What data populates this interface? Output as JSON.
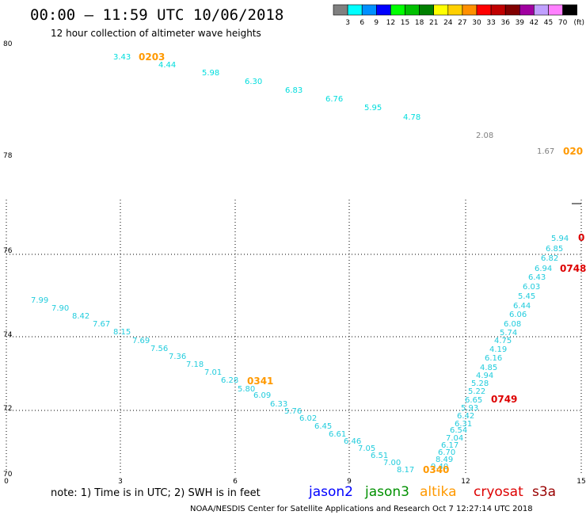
{
  "header": {
    "title": "00:00 – 11:59 UTC 10/06/2018",
    "subtitle": "12 hour collection of altimeter wave heights"
  },
  "legend": {
    "unit": "(ft)",
    "bins": [
      {
        "label": "3",
        "color": "#808080"
      },
      {
        "label": "6",
        "color": "#00ffff"
      },
      {
        "label": "9",
        "color": "#0090ff"
      },
      {
        "label": "12",
        "color": "#0000ff"
      },
      {
        "label": "15",
        "color": "#00ff00"
      },
      {
        "label": "18",
        "color": "#00c000"
      },
      {
        "label": "21",
        "color": "#008000"
      },
      {
        "label": "24",
        "color": "#ffff00"
      },
      {
        "label": "27",
        "color": "#ffd000"
      },
      {
        "label": "30",
        "color": "#ff9000"
      },
      {
        "label": "33",
        "color": "#ff0000"
      },
      {
        "label": "36",
        "color": "#c00000"
      },
      {
        "label": "39",
        "color": "#800000"
      },
      {
        "label": "42",
        "color": "#a000a0"
      },
      {
        "label": "45",
        "color": "#c0a0ff"
      },
      {
        "label": "70",
        "color": "#ff80ff"
      },
      {
        "label": "",
        "color": "#000000"
      }
    ]
  },
  "map": {
    "lat_labels": [
      "80",
      "78",
      "76",
      "74",
      "72",
      "70"
    ],
    "lon_labels": [
      "0",
      "3",
      "6",
      "9",
      "12",
      "15"
    ]
  },
  "tracks": [
    {
      "satellite": "s3a",
      "values": [
        {
          "t": "3.43",
          "c": "#00dddd"
        },
        {
          "t": "4.44",
          "c": "#00dddd"
        },
        {
          "t": "5.98",
          "c": "#00dddd"
        },
        {
          "t": "6.30",
          "c": "#00dddd"
        },
        {
          "t": "6.83",
          "c": "#00dddd"
        },
        {
          "t": "6.76",
          "c": "#00dddd"
        },
        {
          "t": "5.95",
          "c": "#00dddd"
        },
        {
          "t": "4.78",
          "c": "#00dddd"
        },
        {
          "t": "2.08",
          "c": "#808080"
        },
        {
          "t": "1.67",
          "c": "#808080"
        }
      ]
    },
    {
      "satellite": "altika",
      "values": [
        {
          "t": "7.99"
        },
        {
          "t": "7.90"
        },
        {
          "t": "8.42"
        },
        {
          "t": "7.67"
        },
        {
          "t": "8.15"
        },
        {
          "t": "7.69"
        },
        {
          "t": "7.56"
        },
        {
          "t": "7.36"
        },
        {
          "t": "7.18"
        },
        {
          "t": "7.01"
        },
        {
          "t": "6.28"
        },
        {
          "t": "5.80"
        },
        {
          "t": "6.09"
        },
        {
          "t": "6.33"
        },
        {
          "t": "5.76"
        },
        {
          "t": "6.02"
        },
        {
          "t": "6.45"
        },
        {
          "t": "6.61"
        },
        {
          "t": "6.46"
        },
        {
          "t": "7.05"
        },
        {
          "t": "6.51"
        },
        {
          "t": "7.00"
        },
        {
          "t": "8.17"
        }
      ]
    },
    {
      "satellite": "cryosat",
      "values": [
        {
          "t": "9.40"
        },
        {
          "t": "8.49"
        },
        {
          "t": "6.70"
        },
        {
          "t": "6.17"
        },
        {
          "t": "7.04"
        },
        {
          "t": "6.54"
        },
        {
          "t": "6.31"
        },
        {
          "t": "6.42"
        },
        {
          "t": "5.93"
        },
        {
          "t": "6.65"
        },
        {
          "t": "5.22"
        },
        {
          "t": "5.28"
        },
        {
          "t": "4.94"
        },
        {
          "t": "4.85"
        },
        {
          "t": "6.16"
        },
        {
          "t": "4.19"
        },
        {
          "t": "4.75"
        },
        {
          "t": "5.74"
        },
        {
          "t": "6.08"
        },
        {
          "t": "6.06"
        },
        {
          "t": "6.44"
        },
        {
          "t": "5.45"
        },
        {
          "t": "6.03"
        },
        {
          "t": "6.43"
        },
        {
          "t": "6.94"
        },
        {
          "t": "6.82"
        },
        {
          "t": "6.85"
        },
        {
          "t": "5.94"
        }
      ]
    }
  ],
  "pass_times": [
    {
      "t": "0203",
      "color": "#ff9900"
    },
    {
      "t": "020",
      "color": "#ff9900"
    },
    {
      "t": "0341",
      "color": "#ff9900"
    },
    {
      "t": "0340",
      "color": "#ff9900"
    },
    {
      "t": "0749",
      "color": "#dd0000"
    },
    {
      "t": "0748",
      "color": "#dd0000"
    },
    {
      "t": "0",
      "color": "#dd0000"
    }
  ],
  "footer": {
    "note": "note:  1) Time is in UTC;  2) SWH is in feet",
    "satellites": [
      {
        "name": "jason2",
        "color": "#0000ff"
      },
      {
        "name": "jason3",
        "color": "#009000"
      },
      {
        "name": "altika",
        "color": "#ff9900"
      },
      {
        "name": "cryosat",
        "color": "#dd0000"
      },
      {
        "name": "s3a",
        "color": "#990000"
      }
    ],
    "credit": "NOAA/NESDIS Center for Satellite Applications and Research    Oct  7 12:27:14 UTC 2018"
  },
  "colors": {
    "wave_default": "#22ccdd",
    "background": "#ffffff"
  }
}
